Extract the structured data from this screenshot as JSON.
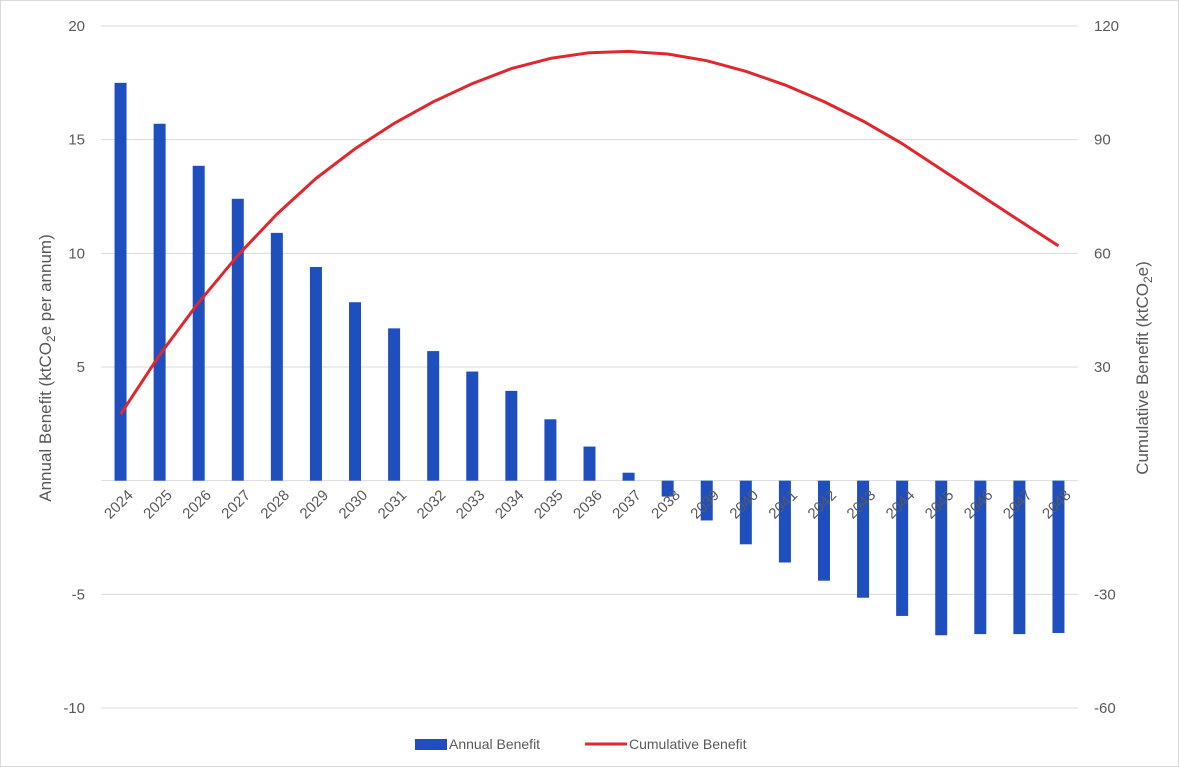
{
  "chart_data": {
    "type": "bar",
    "categories": [
      "2024",
      "2025",
      "2026",
      "2027",
      "2028",
      "2029",
      "2030",
      "2031",
      "2032",
      "2033",
      "2034",
      "2035",
      "2036",
      "2037",
      "2038",
      "2039",
      "2040",
      "2041",
      "2042",
      "2043",
      "2044",
      "2045",
      "2046",
      "2047",
      "2048"
    ],
    "series": [
      {
        "name": "Annual Benefit",
        "type": "bar",
        "axis": "left",
        "color": "#1f4fbf",
        "values": [
          17.5,
          15.7,
          13.85,
          12.4,
          10.9,
          9.4,
          7.85,
          6.7,
          5.7,
          4.8,
          3.95,
          2.7,
          1.5,
          0.35,
          -0.7,
          -1.75,
          -2.8,
          -3.6,
          -4.4,
          -5.15,
          -5.95,
          -6.8,
          -6.75,
          -6.75,
          -6.7
        ]
      },
      {
        "name": "Cumulative Benefit",
        "type": "line",
        "axis": "right",
        "color": "#e0272d",
        "values": [
          17.5,
          33.2,
          47.05,
          59.45,
          70.35,
          79.75,
          87.6,
          94.3,
          100.0,
          104.8,
          108.75,
          111.45,
          112.95,
          113.3,
          112.6,
          110.85,
          108.05,
          104.45,
          100.05,
          94.9,
          88.95,
          82.15,
          75.4,
          68.65,
          61.95
        ]
      }
    ],
    "y_left": {
      "label_prefix": "Annual Benefit (ktCO",
      "label_sub": "2",
      "label_suffix": "e per annum)",
      "ylim": [
        -10,
        20
      ],
      "ticks": [
        -10,
        -5,
        0,
        5,
        10,
        15,
        20
      ],
      "tick_labels": [
        "-10",
        "-5",
        "",
        "5",
        "10",
        "15",
        "20"
      ]
    },
    "y_right": {
      "label_prefix": "Cumulative Benefit (ktCO",
      "label_sub": "2",
      "label_suffix": "e)",
      "ylim": [
        -60,
        120
      ],
      "ticks": [
        -60,
        -30,
        0,
        30,
        60,
        90,
        120
      ],
      "tick_labels": [
        "-60",
        "-30",
        "",
        "30",
        "60",
        "90",
        "120"
      ]
    },
    "grid": true,
    "legend": {
      "position": "bottom",
      "items": [
        "Annual Benefit",
        "Cumulative Benefit"
      ]
    }
  }
}
